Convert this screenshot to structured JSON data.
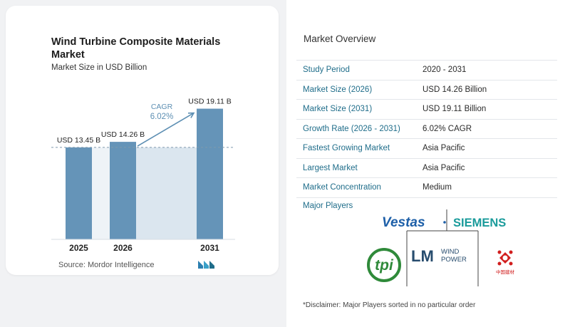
{
  "chart_data": {
    "type": "bar",
    "title": "Wind Turbine Composite Materials Market",
    "subtitle": "Market Size in USD Billion",
    "categories": [
      "2025",
      "2026",
      "2031"
    ],
    "values": [
      13.45,
      14.26,
      19.11
    ],
    "value_labels": [
      "USD 13.45 B",
      "USD 14.26 B",
      "USD 19.11 B"
    ],
    "cagr_label": "CAGR",
    "cagr_value": "6.02%",
    "ylim": [
      0,
      20
    ],
    "reference_line_value": 13.45,
    "colors": {
      "bar": "#6594b8",
      "bar_light": "#dbe6ef",
      "arrow": "#5d8fb3",
      "cagr": "#5d8fb3"
    }
  },
  "source": "Source:  Mordor Intelligence",
  "overview": {
    "title": "Market Overview",
    "rows": [
      {
        "label": "Study Period",
        "value": "2020 - 2031"
      },
      {
        "label": "Market Size (2026)",
        "value": "USD 14.26 Billion"
      },
      {
        "label": "Market Size (2031)",
        "value": "USD 19.11 Billion"
      },
      {
        "label": "Growth Rate (2026 - 2031)",
        "value": "6.02% CAGR"
      },
      {
        "label": "Fastest Growing Market",
        "value": "Asia Pacific"
      },
      {
        "label": "Largest Market",
        "value": "Asia Pacific"
      },
      {
        "label": "Market Concentration",
        "value": "Medium"
      }
    ],
    "players_title": "Major Players",
    "players": {
      "vestas": "Vestas",
      "siemens": "SIEMENS",
      "tpi": "tpi",
      "lm": "LM",
      "lm_wind": "WIND",
      "lm_power": "POWER",
      "sinoma": "中国建材"
    }
  },
  "disclaimer": "*Disclaimer: Major Players sorted in no particular order"
}
